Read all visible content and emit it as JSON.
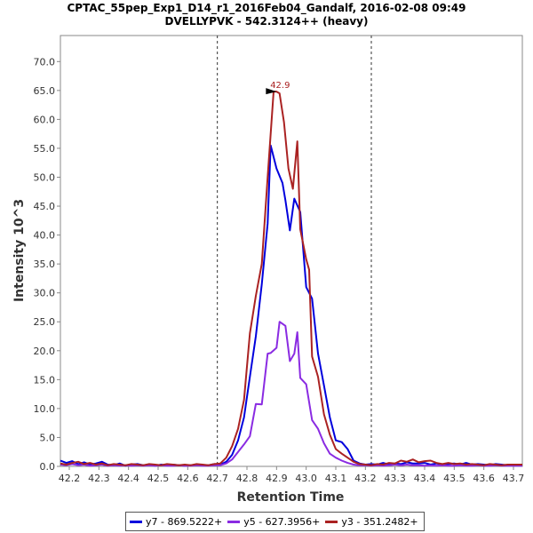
{
  "chart_data": {
    "type": "line",
    "title": "CPTAC_55pep_Exp1_D14_r1_2016Feb04_Gandalf, 2016-02-08 09:49",
    "subtitle": "DVELLYPVK - 542.3124++ (heavy)",
    "xlabel": "Retention Time",
    "ylabel": "Intensity 10^3",
    "xlim": [
      42.17,
      43.73
    ],
    "ylim": [
      0,
      74.5
    ],
    "xticks": [
      "42.2",
      "42.3",
      "42.4",
      "42.5",
      "42.6",
      "42.7",
      "42.8",
      "42.9",
      "43.0",
      "43.1",
      "43.2",
      "43.3",
      "43.4",
      "43.5",
      "43.6",
      "43.7"
    ],
    "yticks": [
      "0.0",
      "5.0",
      "10.0",
      "15.0",
      "20.0",
      "25.0",
      "30.0",
      "35.0",
      "40.0",
      "45.0",
      "50.0",
      "55.0",
      "60.0",
      "65.0",
      "70.0"
    ],
    "integration_boundaries": [
      42.7,
      43.22
    ],
    "peak_annotation": {
      "label": "42.9",
      "x": 42.9,
      "y": 64.8
    },
    "series": [
      {
        "name": "y7 - 869.5222+",
        "color": "#0000dd",
        "x": [
          42.17,
          42.19,
          42.21,
          42.23,
          42.25,
          42.27,
          42.29,
          42.31,
          42.33,
          42.35,
          42.37,
          42.39,
          42.41,
          42.43,
          42.45,
          42.47,
          42.49,
          42.51,
          42.53,
          42.55,
          42.57,
          42.59,
          42.61,
          42.63,
          42.65,
          42.67,
          42.69,
          42.71,
          42.73,
          42.75,
          42.77,
          42.79,
          42.81,
          42.83,
          42.85,
          42.87,
          42.88,
          42.9,
          42.92,
          42.93,
          42.945,
          42.96,
          42.98,
          43.0,
          43.02,
          43.04,
          43.06,
          43.08,
          43.1,
          43.12,
          43.14,
          43.16,
          43.18,
          43.2,
          43.22,
          43.24,
          43.26,
          43.28,
          43.3,
          43.32,
          43.34,
          43.36,
          43.38,
          43.4,
          43.42,
          43.44,
          43.46,
          43.48,
          43.5,
          43.52,
          43.54,
          43.56,
          43.58,
          43.6,
          43.62,
          43.64,
          43.66,
          43.68,
          43.7,
          43.73
        ],
        "y": [
          1.0,
          0.6,
          0.9,
          0.4,
          0.7,
          0.3,
          0.5,
          0.8,
          0.3,
          0.2,
          0.5,
          0.1,
          0.3,
          0.4,
          0.2,
          0.3,
          0.1,
          0.3,
          0.2,
          0.3,
          0.2,
          0.1,
          0.2,
          0.3,
          0.2,
          0.2,
          0.4,
          0.3,
          0.8,
          2.0,
          4.5,
          8.5,
          15.5,
          22.5,
          31.5,
          42.0,
          55.5,
          51.5,
          49.0,
          46.0,
          40.8,
          46.3,
          44.0,
          31.0,
          29.0,
          19.5,
          14.0,
          8.5,
          4.5,
          4.2,
          3.0,
          1.0,
          0.5,
          0.3,
          0.4,
          0.3,
          0.6,
          0.3,
          0.5,
          0.4,
          0.7,
          0.5,
          0.5,
          0.6,
          0.3,
          0.5,
          0.3,
          0.4,
          0.5,
          0.3,
          0.6,
          0.3,
          0.4,
          0.3,
          0.2,
          0.4,
          0.3,
          0.2,
          0.3,
          0.3
        ]
      },
      {
        "name": "y5 - 627.3956+",
        "color": "#8a2be2",
        "x": [
          42.17,
          42.19,
          42.21,
          42.23,
          42.25,
          42.27,
          42.29,
          42.31,
          42.33,
          42.35,
          42.37,
          42.39,
          42.41,
          42.43,
          42.45,
          42.47,
          42.49,
          42.51,
          42.53,
          42.55,
          42.57,
          42.59,
          42.61,
          42.63,
          42.65,
          42.67,
          42.69,
          42.71,
          42.73,
          42.75,
          42.77,
          42.79,
          42.81,
          42.83,
          42.85,
          42.87,
          42.88,
          42.9,
          42.91,
          42.93,
          42.945,
          42.96,
          42.97,
          42.98,
          43.0,
          43.02,
          43.04,
          43.06,
          43.08,
          43.1,
          43.12,
          43.14,
          43.16,
          43.18,
          43.2,
          43.22,
          43.24,
          43.26,
          43.28,
          43.3,
          43.32,
          43.34,
          43.36,
          43.38,
          43.4,
          43.42,
          43.44,
          43.46,
          43.48,
          43.5,
          43.52,
          43.54,
          43.56,
          43.58,
          43.6,
          43.62,
          43.64,
          43.66,
          43.68,
          43.7,
          43.73
        ],
        "y": [
          0.3,
          0.2,
          0.4,
          0.2,
          0.3,
          0.1,
          0.2,
          0.3,
          0.1,
          0.2,
          0.1,
          0.2,
          0.1,
          0.2,
          0.1,
          0.2,
          0.1,
          0.2,
          0.1,
          0.1,
          0.2,
          0.1,
          0.1,
          0.2,
          0.1,
          0.1,
          0.2,
          0.2,
          0.5,
          1.2,
          2.5,
          3.8,
          5.2,
          10.8,
          10.7,
          19.5,
          19.6,
          20.5,
          25.0,
          24.3,
          18.2,
          19.5,
          23.2,
          15.3,
          14.2,
          8.0,
          6.5,
          4.0,
          2.2,
          1.5,
          1.0,
          0.6,
          0.3,
          0.2,
          0.2,
          0.1,
          0.2,
          0.1,
          0.2,
          0.3,
          0.2,
          0.3,
          0.2,
          0.2,
          0.1,
          0.2,
          0.1,
          0.2,
          0.1,
          0.1,
          0.2,
          0.1,
          0.1,
          0.2,
          0.1,
          0.1,
          0.2,
          0.1,
          0.1,
          0.1,
          0.1
        ]
      },
      {
        "name": "y3 - 351.2482+",
        "color": "#aa2222",
        "x": [
          42.17,
          42.19,
          42.21,
          42.23,
          42.25,
          42.27,
          42.29,
          42.31,
          42.33,
          42.35,
          42.37,
          42.39,
          42.41,
          42.43,
          42.45,
          42.47,
          42.49,
          42.51,
          42.53,
          42.55,
          42.57,
          42.59,
          42.61,
          42.63,
          42.65,
          42.67,
          42.69,
          42.71,
          42.73,
          42.75,
          42.77,
          42.79,
          42.81,
          42.83,
          42.85,
          42.87,
          42.89,
          42.9,
          42.91,
          42.925,
          42.94,
          42.955,
          42.97,
          42.98,
          43.0,
          43.01,
          43.02,
          43.04,
          43.06,
          43.08,
          43.1,
          43.12,
          43.14,
          43.16,
          43.18,
          43.2,
          43.22,
          43.24,
          43.26,
          43.28,
          43.3,
          43.32,
          43.34,
          43.36,
          43.38,
          43.4,
          43.42,
          43.44,
          43.46,
          43.48,
          43.5,
          43.52,
          43.54,
          43.56,
          43.58,
          43.6,
          43.62,
          43.64,
          43.66,
          43.68,
          43.7,
          43.73
        ],
        "y": [
          0.5,
          0.3,
          0.6,
          0.8,
          0.4,
          0.6,
          0.3,
          0.5,
          0.2,
          0.4,
          0.3,
          0.2,
          0.4,
          0.3,
          0.2,
          0.4,
          0.3,
          0.2,
          0.4,
          0.3,
          0.2,
          0.3,
          0.2,
          0.4,
          0.3,
          0.2,
          0.4,
          0.5,
          1.5,
          3.5,
          6.5,
          11.5,
          23.0,
          29.5,
          35.0,
          50.0,
          64.8,
          64.8,
          64.5,
          59.5,
          51.5,
          48.0,
          56.2,
          41.0,
          35.8,
          34.0,
          19.0,
          15.5,
          9.0,
          5.5,
          3.0,
          2.2,
          1.5,
          0.8,
          0.4,
          0.3,
          0.2,
          0.4,
          0.3,
          0.6,
          0.5,
          1.0,
          0.8,
          1.2,
          0.7,
          0.9,
          1.0,
          0.6,
          0.4,
          0.6,
          0.4,
          0.5,
          0.3,
          0.4,
          0.3,
          0.2,
          0.4,
          0.3,
          0.2,
          0.3,
          0.3,
          0.3
        ]
      }
    ]
  }
}
